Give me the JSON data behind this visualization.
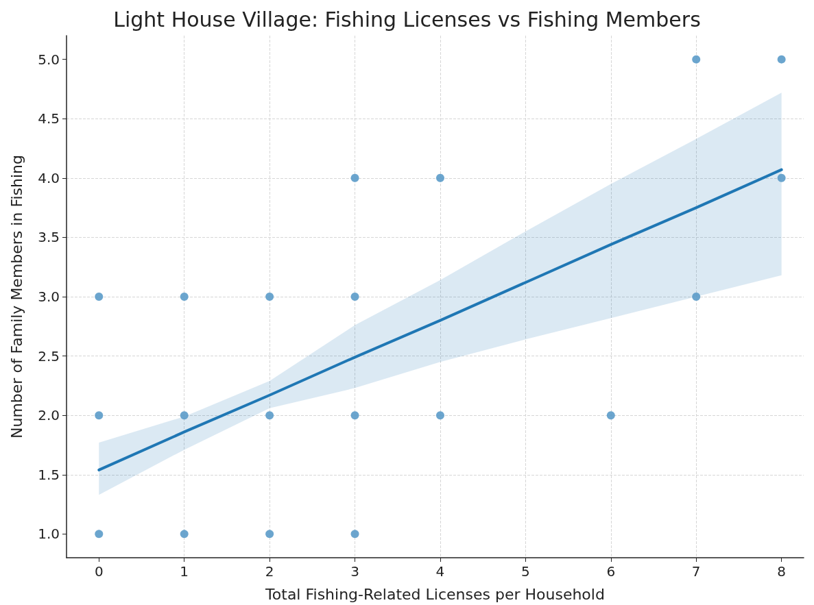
{
  "chart_data": {
    "type": "scatter",
    "title": "Light House Village: Fishing Licenses vs Fishing Members",
    "xlabel": "Total Fishing-Related Licenses per Household",
    "ylabel": "Number of Family Members in Fishing",
    "series": [
      {
        "color": "#5b9bc9",
        "marker": "circle",
        "x": [
          0,
          0,
          0,
          1,
          1,
          1,
          2,
          2,
          2,
          3,
          3,
          3,
          3,
          4,
          4,
          6,
          7,
          7,
          8,
          8
        ],
        "values": [
          3,
          2,
          1,
          3,
          2,
          1,
          3,
          2,
          1,
          4,
          3,
          2,
          1,
          4,
          2,
          2,
          5,
          3,
          5,
          4
        ]
      },
      {
        "type": "line",
        "color": "#1f77b4",
        "marker": "none",
        "x": [
          0,
          1,
          2,
          3,
          4,
          5,
          6,
          7,
          8
        ],
        "values": [
          1.54,
          1.86,
          2.17,
          2.49,
          2.8,
          3.12,
          3.44,
          3.75,
          4.07
        ],
        "lower": [
          1.33,
          1.71,
          2.06,
          2.23,
          2.45,
          2.64,
          2.82,
          3.0,
          3.18
        ],
        "upper": [
          1.77,
          1.99,
          2.29,
          2.76,
          3.14,
          3.55,
          3.95,
          4.33,
          4.72
        ]
      }
    ],
    "xlim": [
      -0.38,
      8.26
    ],
    "ylim": [
      0.8,
      5.2
    ],
    "xticks": [
      0,
      1,
      2,
      3,
      4,
      5,
      6,
      7,
      8
    ],
    "yticks": [
      {
        "value": 1,
        "label": "1.0"
      },
      {
        "value": 1.5,
        "label": "1.5"
      },
      {
        "value": 2,
        "label": "2.0"
      },
      {
        "value": 2.5,
        "label": "2.5"
      },
      {
        "value": 3,
        "label": "3.0"
      },
      {
        "value": 3.5,
        "label": "3.5"
      },
      {
        "value": 4,
        "label": "4.0"
      },
      {
        "value": 4.5,
        "label": "4.5"
      },
      {
        "value": 5,
        "label": "5.0"
      }
    ],
    "grid": true
  }
}
